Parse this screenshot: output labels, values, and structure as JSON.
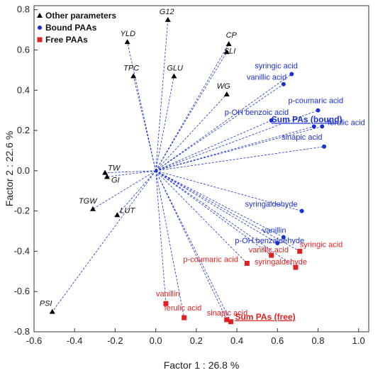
{
  "chart_data": {
    "type": "scatter",
    "xlabel": "Factor 1 : 26.8 %",
    "ylabel": "Factor 2 : 22.6 %",
    "xlim": [
      -0.6,
      1.05
    ],
    "ylim": [
      -0.8,
      0.82
    ],
    "xticks": [
      "-0.6",
      "-0.4",
      "-0.2",
      "0.0",
      "0.2",
      "0.4",
      "0.6",
      "0.8",
      "1.0"
    ],
    "yticks": [
      "0.8",
      "0.6",
      "0.4",
      "0.2",
      "0.0",
      "-0.2",
      "-0.4",
      "-0.6",
      "-0.8"
    ],
    "grid": false,
    "legend_position": "top-left",
    "origin": [
      0.0,
      0.0
    ],
    "series": [
      {
        "name": "Other parameters",
        "marker": "triangle",
        "color": "#000000",
        "line_color": "#1a2fd6",
        "points": [
          {
            "label": "G12",
            "x": 0.06,
            "y": 0.75
          },
          {
            "label": "YLD",
            "x": -0.14,
            "y": 0.64
          },
          {
            "label": "CP",
            "x": 0.36,
            "y": 0.63
          },
          {
            "label": "SLI",
            "x": 0.35,
            "y": 0.59
          },
          {
            "label": "TPC",
            "x": -0.11,
            "y": 0.47
          },
          {
            "label": "GLU",
            "x": 0.09,
            "y": 0.47
          },
          {
            "label": "WG",
            "x": 0.35,
            "y": 0.38
          },
          {
            "label": "TW",
            "x": -0.25,
            "y": -0.01
          },
          {
            "label": "GI",
            "x": -0.24,
            "y": -0.03
          },
          {
            "label": "TGW",
            "x": -0.31,
            "y": -0.19
          },
          {
            "label": "LUT",
            "x": -0.19,
            "y": -0.22
          },
          {
            "label": "PSI",
            "x": -0.51,
            "y": -0.7
          }
        ]
      },
      {
        "name": "Bound PAAs",
        "marker": "circle",
        "color": "#1a2fd6",
        "line_color": "#1a2fd6",
        "points": [
          {
            "label": "syringic acid",
            "x": 0.67,
            "y": 0.48
          },
          {
            "label": "vanillic acid",
            "x": 0.63,
            "y": 0.43
          },
          {
            "label": "p-coumaric acid",
            "x": 0.8,
            "y": 0.3
          },
          {
            "label": "p-OH benzoic acid",
            "x": 0.57,
            "y": 0.25
          },
          {
            "label": "ferulic acid",
            "x": 0.82,
            "y": 0.22
          },
          {
            "label": "Sum PAs  (bound)",
            "x": 0.78,
            "y": 0.22,
            "emphasis": true
          },
          {
            "label": "sinapic acid",
            "x": 0.83,
            "y": 0.12
          },
          {
            "label": "syringaldehyde",
            "x": 0.72,
            "y": -0.2
          },
          {
            "label": "vanillin",
            "x": 0.63,
            "y": -0.33
          },
          {
            "label": "p-OH benzaldehyde",
            "x": 0.6,
            "y": -0.36
          }
        ]
      },
      {
        "name": "Free PAAs",
        "marker": "square",
        "color": "#e02020",
        "line_color": "#1a2fd6",
        "points": [
          {
            "label": "vanillic acid",
            "x": 0.57,
            "y": -0.42
          },
          {
            "label": "syringic acid",
            "x": 0.71,
            "y": -0.4
          },
          {
            "label": "p-coumaric acid",
            "x": 0.45,
            "y": -0.46
          },
          {
            "label": "syringaldehyde",
            "x": 0.69,
            "y": -0.48
          },
          {
            "label": "vanillin",
            "x": 0.05,
            "y": -0.66
          },
          {
            "label": "ferulic acid",
            "x": 0.14,
            "y": -0.73
          },
          {
            "label": "sinapic acid",
            "x": 0.35,
            "y": -0.74
          },
          {
            "label": "Sum PAs (free)",
            "x": 0.37,
            "y": -0.75,
            "emphasis": true
          }
        ]
      }
    ]
  }
}
